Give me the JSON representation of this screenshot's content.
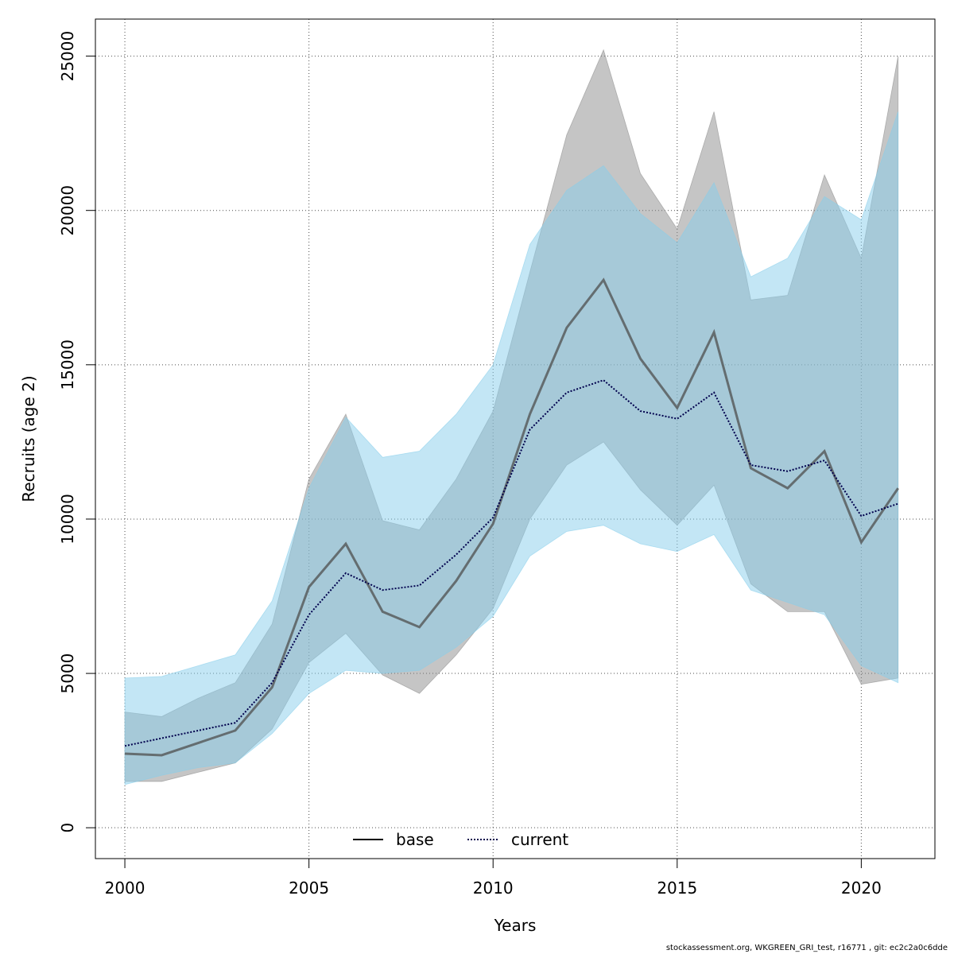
{
  "chart_data": {
    "type": "line",
    "xlabel": "Years",
    "ylabel": "Recruits (age 2)",
    "xlim": [
      1999.2,
      2022.0
    ],
    "ylim": [
      -1000,
      26200
    ],
    "xticks": [
      2000,
      2005,
      2010,
      2015,
      2020
    ],
    "yticks": [
      0,
      5000,
      10000,
      15000,
      20000,
      25000
    ],
    "grid": true,
    "legend_position": "bottom-center",
    "x": [
      2000,
      2001,
      2002,
      2003,
      2004,
      2005,
      2006,
      2007,
      2008,
      2009,
      2010,
      2011,
      2012,
      2013,
      2014,
      2015,
      2016,
      2017,
      2018,
      2019,
      2020,
      2021
    ],
    "series": [
      {
        "name": "base",
        "line_style": "solid",
        "line_color": "#4d4d4d",
        "band_color": "#8c8c8c",
        "values": [
          2400,
          2350,
          2750,
          3150,
          4550,
          7800,
          9200,
          7000,
          6500,
          8000,
          9850,
          13400,
          16200,
          17750,
          15200,
          13600,
          16050,
          11650,
          11000,
          12200,
          9250,
          11000
        ],
        "lower": [
          1500,
          1500,
          1800,
          2100,
          3200,
          5350,
          6300,
          4950,
          4350,
          5600,
          7100,
          10000,
          11750,
          12500,
          10950,
          9800,
          11100,
          7900,
          7000,
          7000,
          4650,
          4850
        ],
        "upper": [
          3750,
          3600,
          4200,
          4700,
          6600,
          11300,
          13400,
          9950,
          9650,
          11300,
          13500,
          18000,
          22450,
          25200,
          21200,
          19400,
          23200,
          17100,
          17250,
          21150,
          18450,
          25000
        ]
      },
      {
        "name": "current",
        "line_style": "dotted",
        "line_color": "#00004d",
        "band_color": "#87ceeb",
        "values": [
          2650,
          2900,
          3150,
          3400,
          4700,
          6900,
          8250,
          7700,
          7850,
          8850,
          10050,
          12900,
          14100,
          14500,
          13500,
          13250,
          14100,
          11750,
          11550,
          11900,
          10100,
          10500
        ],
        "lower": [
          1400,
          1700,
          1950,
          2100,
          3050,
          4350,
          5100,
          5000,
          5100,
          5850,
          6850,
          8800,
          9600,
          9800,
          9200,
          8950,
          9500,
          7700,
          7300,
          6900,
          5250,
          4700
        ],
        "upper": [
          4850,
          4900,
          5250,
          5600,
          7350,
          11000,
          13300,
          12000,
          12200,
          13400,
          15000,
          18900,
          20650,
          21450,
          19900,
          18950,
          20900,
          17850,
          18450,
          20450,
          19700,
          23200
        ]
      }
    ]
  },
  "footer": {
    "text": "stockassessment.org, WKGREEN_GRI_test, r16771 , git: ec2c2a0c6dde"
  }
}
